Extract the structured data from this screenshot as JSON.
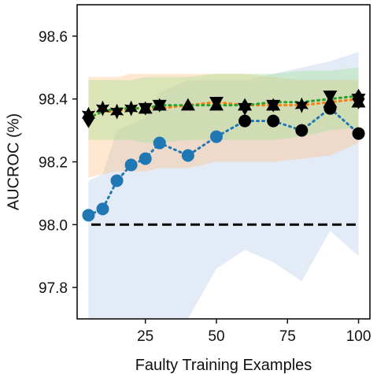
{
  "chart_data": {
    "type": "line",
    "xlabel": "Faulty Training Examples",
    "ylabel": "AUCROC (%)",
    "xlim": [
      1,
      104
    ],
    "ylim": [
      97.7,
      98.7
    ],
    "xticks": [
      25,
      50,
      75,
      100
    ],
    "yticks": [
      97.8,
      98.0,
      98.2,
      98.4,
      98.6
    ],
    "grid": false,
    "legend": "none",
    "reference_line": {
      "y": 98.0,
      "style": "dashed",
      "color": "#000000"
    },
    "x": [
      5,
      10,
      15,
      20,
      25,
      30,
      40,
      50,
      60,
      70,
      80,
      90,
      100
    ],
    "series": [
      {
        "color": "#1f77b4",
        "band_color": "#aec7e8",
        "values": [
          98.03,
          98.05,
          98.14,
          98.19,
          98.21,
          98.26,
          98.22,
          98.28,
          98.33,
          98.33,
          98.3,
          98.37,
          98.29
        ],
        "lower": [
          97.7,
          97.7,
          97.7,
          97.7,
          97.7,
          97.7,
          97.7,
          97.86,
          97.92,
          97.88,
          97.82,
          97.98,
          97.9
        ],
        "upper": [
          98.14,
          98.16,
          98.3,
          98.32,
          98.34,
          98.42,
          98.46,
          98.46,
          98.46,
          98.48,
          98.5,
          98.52,
          98.55
        ]
      },
      {
        "color": "#ff7f0e",
        "band_color": "#ffbb78",
        "values": [
          98.34,
          98.36,
          98.36,
          98.37,
          98.37,
          98.37,
          98.38,
          98.39,
          98.38,
          98.38,
          98.38,
          98.39,
          98.4
        ],
        "lower": [
          98.15,
          98.16,
          98.17,
          98.17,
          98.17,
          98.18,
          98.18,
          98.2,
          98.2,
          98.2,
          98.21,
          98.22,
          98.26
        ],
        "upper": [
          98.47,
          98.47,
          98.47,
          98.48,
          98.48,
          98.48,
          98.48,
          98.48,
          98.48,
          98.47,
          98.46,
          98.46,
          98.46
        ]
      },
      {
        "color": "#2ca02c",
        "band_color": "#98df8a",
        "values": [
          98.34,
          98.36,
          98.37,
          98.37,
          98.37,
          98.38,
          98.38,
          98.38,
          98.38,
          98.39,
          98.39,
          98.4,
          98.41
        ],
        "lower": [
          98.27,
          98.27,
          98.27,
          98.27,
          98.26,
          98.26,
          98.27,
          98.27,
          98.27,
          98.27,
          98.28,
          98.3,
          98.31
        ],
        "upper": [
          98.46,
          98.46,
          98.46,
          98.46,
          98.47,
          98.47,
          98.47,
          98.48,
          98.48,
          98.48,
          98.49,
          98.49,
          98.5
        ]
      }
    ],
    "markers": [
      {
        "shape": "circle",
        "values": [
          98.03,
          98.05,
          98.14,
          98.19,
          98.21,
          98.26,
          98.22,
          98.28,
          98.33,
          98.33,
          98.3,
          98.37,
          98.29
        ],
        "first_n_colored": 8,
        "colored": "#1f77b4",
        "rest": "#000000"
      },
      {
        "shape": "diamond",
        "values": [
          98.34,
          null,
          null,
          null,
          null,
          null,
          null,
          null,
          null,
          null,
          null,
          null,
          98.4
        ],
        "colored": "#000000",
        "rest": "#000000"
      },
      {
        "shape": "star",
        "values": [
          98.35,
          98.37,
          98.36,
          98.37,
          null,
          null,
          null,
          null,
          null,
          null,
          98.38,
          null,
          null
        ],
        "colored": "#000000",
        "rest": "#000000"
      },
      {
        "shape": "triangle-up",
        "values": [
          null,
          null,
          null,
          null,
          98.37,
          98.38,
          98.38,
          98.38,
          98.38,
          98.38,
          null,
          98.39,
          98.39
        ],
        "colored": "#000000",
        "rest": "#000000"
      },
      {
        "shape": "triangle-down",
        "values": [
          null,
          null,
          null,
          null,
          98.37,
          98.38,
          null,
          98.39,
          98.37,
          98.38,
          null,
          98.41,
          98.4
        ],
        "colored": "#000000",
        "rest": "#000000"
      }
    ]
  }
}
